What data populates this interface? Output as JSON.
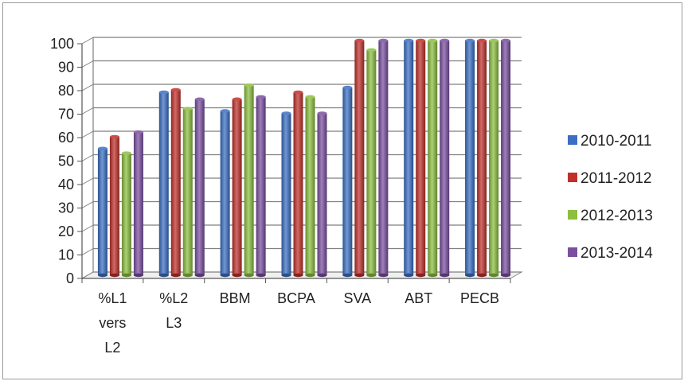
{
  "chart_data": {
    "type": "bar",
    "title": "",
    "xlabel": "",
    "ylabel": "",
    "ylim": [
      0,
      100
    ],
    "yticks": [
      0,
      10,
      20,
      30,
      40,
      50,
      60,
      70,
      80,
      90,
      100
    ],
    "grid": true,
    "legend_position": "right",
    "categories": [
      {
        "lines": [
          "%L1",
          "vers",
          "L2"
        ]
      },
      {
        "lines": [
          "%L2",
          "L3"
        ]
      },
      {
        "lines": [
          "BBM"
        ]
      },
      {
        "lines": [
          "BCPA"
        ]
      },
      {
        "lines": [
          "SVA"
        ]
      },
      {
        "lines": [
          "ABT"
        ]
      },
      {
        "lines": [
          "PECB"
        ]
      }
    ],
    "series": [
      {
        "name": "2010-2011",
        "color": "#3a6fc4",
        "values": [
          54,
          78,
          70,
          69,
          80,
          100,
          100
        ]
      },
      {
        "name": "2011-2012",
        "color": "#c0302b",
        "values": [
          59,
          79,
          75,
          78,
          100,
          100,
          100
        ]
      },
      {
        "name": "2012-2013",
        "color": "#8cbf3f",
        "values": [
          52,
          71,
          81,
          76,
          96,
          100,
          100
        ]
      },
      {
        "name": "2013-2014",
        "color": "#7a4fa0",
        "values": [
          61,
          75,
          76,
          69,
          100,
          100,
          100
        ]
      }
    ]
  }
}
